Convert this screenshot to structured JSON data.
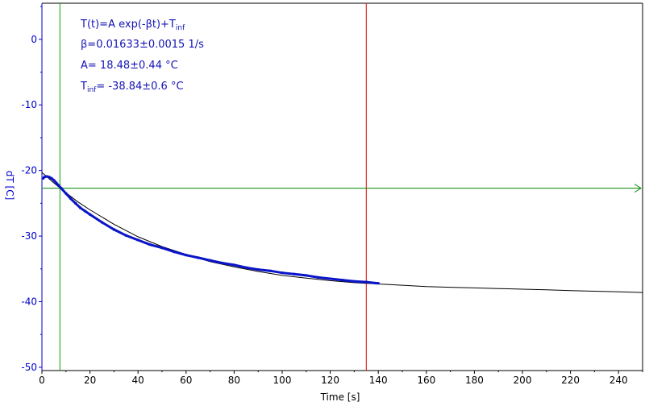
{
  "chart_data": {
    "type": "scatter",
    "xlabel": "Time [s]",
    "ylabel": "dT [C]",
    "xlim": [
      0,
      250
    ],
    "ylim": [
      -50.5,
      5.5
    ],
    "x_ticks": [
      0,
      20,
      40,
      60,
      80,
      100,
      120,
      140,
      160,
      180,
      200,
      220,
      240
    ],
    "y_ticks": [
      0,
      -10,
      -20,
      -30,
      -40,
      -50
    ],
    "grid": false,
    "annotations": {
      "formula_prefix": "T(t)=A exp(-βt)+T",
      "formula_sub": "inf",
      "beta": "β=0.01633±0.0015 1/s",
      "amp": "A= 18.48±0.44 °C",
      "tinf_prefix": "T",
      "tinf_sub": "inf",
      "tinf_value": "= -38.84±0.6 °C"
    },
    "measured": {
      "x": [
        0.5,
        1,
        2,
        3,
        4,
        5,
        6,
        7,
        8,
        10,
        12,
        14,
        16,
        18,
        20,
        25,
        30,
        35,
        40,
        45,
        50,
        55,
        60,
        65,
        70,
        75,
        80,
        85,
        90,
        95,
        100,
        105,
        110,
        115,
        120,
        125,
        130,
        135,
        140
      ],
      "y": [
        -21.2,
        -21.0,
        -20.9,
        -21.0,
        -21.2,
        -21.5,
        -21.9,
        -22.3,
        -22.7,
        -23.5,
        -24.3,
        -25.0,
        -25.7,
        -26.2,
        -26.7,
        -27.9,
        -29.0,
        -29.9,
        -30.6,
        -31.3,
        -31.8,
        -32.4,
        -32.9,
        -33.3,
        -33.7,
        -34.1,
        -34.4,
        -34.8,
        -35.1,
        -35.3,
        -35.6,
        -35.8,
        -36.0,
        -36.3,
        -36.5,
        -36.7,
        -36.9,
        -37.0,
        -37.2
      ]
    },
    "fit": {
      "x": [
        0,
        5,
        10,
        15,
        20,
        30,
        40,
        50,
        60,
        70,
        80,
        90,
        100,
        110,
        120,
        130,
        140,
        150,
        160,
        170,
        180,
        190,
        200,
        210,
        220,
        230,
        240,
        250
      ],
      "y": [
        -20.3,
        -21.9,
        -23.4,
        -24.8,
        -26.0,
        -28.2,
        -30.1,
        -31.6,
        -32.8,
        -33.9,
        -34.7,
        -35.4,
        -36.0,
        -36.4,
        -36.8,
        -37.1,
        -37.3,
        -37.5,
        -37.7,
        -37.8,
        -37.9,
        -38.0,
        -38.1,
        -38.2,
        -38.3,
        -38.4,
        -38.5,
        -38.6
      ]
    },
    "cursors": {
      "vertical_green_x": 7.5,
      "vertical_red_x": 135,
      "horizontal_green_y": -22.7
    },
    "colors": {
      "measured": "#0a14c8",
      "fit": "#000000",
      "axis_left": "#0000cc",
      "cursor_green": "#00aa00",
      "cursor_green_horizontal": "#008800",
      "cursor_red": "#dd0000",
      "annotation": "#1414b4"
    }
  }
}
